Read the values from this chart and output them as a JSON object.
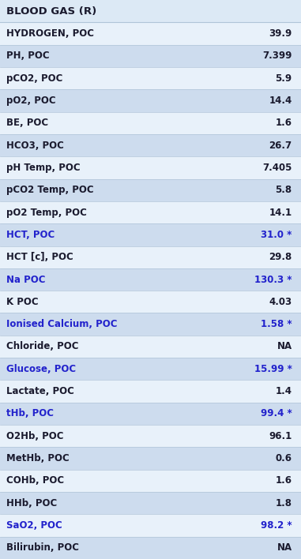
{
  "title": "BLOOD GAS (R)",
  "rows": [
    {
      "label": "HYDROGEN, POC",
      "value": "39.9",
      "highlight": false
    },
    {
      "label": "PH, POC",
      "value": "7.399",
      "highlight": false
    },
    {
      "label": "pCO2, POC",
      "value": "5.9",
      "highlight": false
    },
    {
      "label": "pO2, POC",
      "value": "14.4",
      "highlight": false
    },
    {
      "label": "BE, POC",
      "value": "1.6",
      "highlight": false
    },
    {
      "label": "HCO3, POC",
      "value": "26.7",
      "highlight": false
    },
    {
      "label": "pH Temp, POC",
      "value": "7.405",
      "highlight": false
    },
    {
      "label": "pCO2 Temp, POC",
      "value": "5.8",
      "highlight": false
    },
    {
      "label": "pO2 Temp, POC",
      "value": "14.1",
      "highlight": false
    },
    {
      "label": "HCT, POC",
      "value": "31.0 *",
      "highlight": true
    },
    {
      "label": "HCT [c], POC",
      "value": "29.8",
      "highlight": false
    },
    {
      "label": "Na POC",
      "value": "130.3 *",
      "highlight": true
    },
    {
      "label": "K POC",
      "value": "4.03",
      "highlight": false
    },
    {
      "label": "Ionised Calcium, POC",
      "value": "1.58 *",
      "highlight": true
    },
    {
      "label": "Chloride, POC",
      "value": "NA",
      "highlight": false
    },
    {
      "label": "Glucose, POC",
      "value": "15.99 *",
      "highlight": true
    },
    {
      "label": "Lactate, POC",
      "value": "1.4",
      "highlight": false
    },
    {
      "label": "tHb, POC",
      "value": "99.4 *",
      "highlight": true
    },
    {
      "label": "O2Hb, POC",
      "value": "96.1",
      "highlight": false
    },
    {
      "label": "MetHb, POC",
      "value": "0.6",
      "highlight": false
    },
    {
      "label": "COHb, POC",
      "value": "1.6",
      "highlight": false
    },
    {
      "label": "HHb, POC",
      "value": "1.8",
      "highlight": false
    },
    {
      "label": "SaO2, POC",
      "value": "98.2 *",
      "highlight": true
    },
    {
      "label": "Bilirubin, POC",
      "value": "NA",
      "highlight": false
    }
  ],
  "bg_color": "#dce9f5",
  "row_bg_light": "#e8f1fa",
  "row_bg_dark": "#cddcee",
  "header_bg": "#dce9f5",
  "normal_color": "#1a1a2e",
  "highlight_color": "#2222cc",
  "line_color": "#b0c4d8",
  "font_size": 8.5,
  "title_font_size": 9.5,
  "fig_width": 3.81,
  "fig_height": 7.08,
  "dpi": 100
}
